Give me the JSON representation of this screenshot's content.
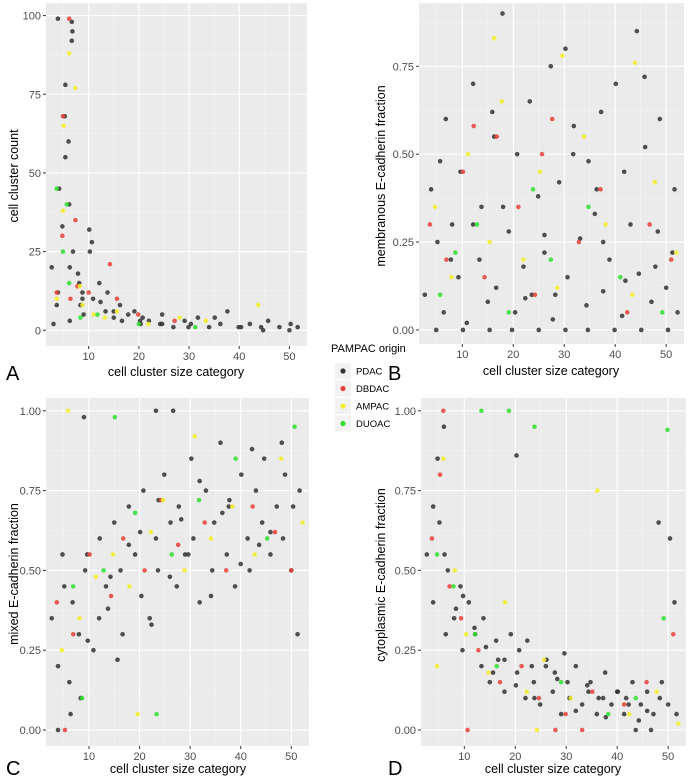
{
  "legend": {
    "title": "PAMPAC origin",
    "items": [
      {
        "label": "PDAC",
        "color": "#333333"
      },
      {
        "label": "DBDAC",
        "color": "#e8423b"
      },
      {
        "label": "AMPAC",
        "color": "#f2ef2e"
      },
      {
        "label": "DUOAC",
        "color": "#2fe02f"
      }
    ]
  },
  "style": {
    "panel_background": "#ebebeb",
    "grid_major": "#ffffff",
    "grid_minor": "#f4f4f4",
    "point_alpha": 0.85
  },
  "chart_data": [
    {
      "panel": "A",
      "type": "scatter",
      "xlabel": "cell cluster size category",
      "ylabel": "cell cluster count",
      "xlim": [
        1.5,
        53.5
      ],
      "ylim": [
        -5,
        104
      ],
      "xticks": [
        10,
        20,
        30,
        40,
        50
      ],
      "yticks": [
        0,
        25,
        50,
        75,
        100
      ],
      "ytick_labels": [
        "0",
        "25",
        "50",
        "75",
        "100"
      ],
      "series": [
        {
          "name": "PDAC",
          "x": [
            3,
            4,
            4,
            5,
            5,
            6,
            6,
            7,
            7,
            8,
            8,
            9,
            9,
            10,
            11,
            11,
            12,
            13,
            14,
            15,
            16,
            17,
            18,
            19,
            20,
            21,
            22,
            24,
            25,
            27,
            29,
            30,
            32,
            34,
            36,
            38,
            40,
            42,
            44,
            46,
            48,
            50,
            52,
            4,
            6,
            5,
            7,
            3,
            6,
            4,
            8,
            10,
            12,
            9,
            15,
            20,
            25,
            30,
            35,
            40,
            45,
            50,
            5,
            7
          ],
          "y": [
            20,
            99,
            45,
            78,
            33,
            60,
            20,
            98,
            25,
            15,
            8,
            12,
            5,
            25,
            28,
            10,
            15,
            6,
            12,
            4,
            8,
            3,
            5,
            6,
            2,
            4,
            3,
            2,
            5,
            1,
            3,
            2,
            4,
            1,
            2,
            6,
            1,
            2,
            1,
            3,
            1,
            2,
            1,
            12,
            40,
            55,
            95,
            2,
            3,
            8,
            18,
            32,
            9,
            10,
            6,
            3,
            2,
            1,
            4,
            1,
            0,
            0,
            68,
            92
          ]
        },
        {
          "name": "DBDAC",
          "x": [
            4,
            5,
            6,
            7,
            8,
            10,
            14,
            16,
            20,
            27,
            6,
            5
          ],
          "y": [
            12,
            68,
            99,
            35,
            14,
            12,
            21,
            10,
            5,
            3,
            10,
            30
          ]
        },
        {
          "name": "AMPAC",
          "x": [
            4,
            5,
            6,
            7,
            9,
            11,
            13,
            16,
            22,
            28,
            33,
            44,
            5,
            8
          ],
          "y": [
            10,
            38,
            88,
            77,
            8,
            5,
            4,
            6,
            2,
            4,
            3,
            8,
            65,
            14
          ]
        },
        {
          "name": "DUOAC",
          "x": [
            4,
            5,
            6,
            8,
            12,
            20,
            31,
            6
          ],
          "y": [
            45,
            25,
            15,
            4,
            5,
            2,
            1,
            40
          ]
        }
      ]
    },
    {
      "panel": "B",
      "type": "scatter",
      "xlabel": "cell cluster size category",
      "ylabel": "membranous E-cadherin fraction",
      "xlim": [
        1.5,
        53.5
      ],
      "ylim": [
        -0.04,
        0.93
      ],
      "xticks": [
        10,
        20,
        30,
        40,
        50
      ],
      "yticks": [
        0,
        0.25,
        0.5,
        0.75
      ],
      "ytick_labels": [
        "0.00",
        "0.25",
        "0.50",
        "0.75"
      ],
      "series": [
        {
          "name": "PDAC",
          "x": [
            3,
            4,
            5,
            6,
            7,
            8,
            9,
            10,
            11,
            12,
            13,
            14,
            15,
            16,
            17,
            18,
            19,
            20,
            21,
            22,
            23,
            24,
            25,
            26,
            27,
            28,
            29,
            30,
            31,
            32,
            33,
            34,
            35,
            36,
            37,
            38,
            39,
            40,
            41,
            42,
            43,
            44,
            45,
            46,
            47,
            48,
            49,
            50,
            51,
            52,
            5,
            10,
            15,
            20,
            25,
            30,
            35,
            40,
            45,
            50,
            8,
            18,
            28,
            38,
            48,
            12,
            22,
            32,
            42,
            52,
            6,
            16,
            26,
            36,
            46
          ],
          "y": [
            0.1,
            0.4,
            0.25,
            0.05,
            0.6,
            0.3,
            0.15,
            0.45,
            0.02,
            0.7,
            0.2,
            0.35,
            0.08,
            0.55,
            0.12,
            0.9,
            0.28,
            0.05,
            0.5,
            0.18,
            0.65,
            0.1,
            0.38,
            0.22,
            0.75,
            0.03,
            0.42,
            0.8,
            0.15,
            0.58,
            0.26,
            0.07,
            0.48,
            0.33,
            0.62,
            0.11,
            0.2,
            0.7,
            0.04,
            0.45,
            0.3,
            0.85,
            0.16,
            0.52,
            0.08,
            0.28,
            0.6,
            0.12,
            0.22,
            0.4,
            0.0,
            0.0,
            0.0,
            0.0,
            0.0,
            0.0,
            0.0,
            0.0,
            0.0,
            0.0,
            0.2,
            0.35,
            0.1,
            0.25,
            0.18,
            0.3,
            0.09,
            0.5,
            0.14,
            0.05,
            0.48,
            0.62,
            0.27,
            0.4,
            0.72
          ]
        },
        {
          "name": "DBDAC",
          "x": [
            4,
            7,
            10,
            14,
            17,
            21,
            24,
            28,
            33,
            37,
            42,
            47,
            51,
            12,
            26
          ],
          "y": [
            0.3,
            0.2,
            0.45,
            0.15,
            0.55,
            0.35,
            0.1,
            0.6,
            0.25,
            0.4,
            0.05,
            0.3,
            0.2,
            0.58,
            0.5
          ]
        },
        {
          "name": "AMPAC",
          "x": [
            5,
            8,
            11,
            15,
            18,
            22,
            25,
            29,
            34,
            38,
            43,
            48,
            52,
            16,
            30,
            44
          ],
          "y": [
            0.35,
            0.15,
            0.5,
            0.25,
            0.65,
            0.2,
            0.45,
            0.12,
            0.55,
            0.3,
            0.1,
            0.42,
            0.22,
            0.83,
            0.78,
            0.76
          ]
        },
        {
          "name": "DUOAC",
          "x": [
            6,
            13,
            19,
            27,
            35,
            41,
            49,
            9,
            24
          ],
          "y": [
            0.1,
            0.3,
            0.05,
            0.2,
            0.35,
            0.15,
            0.05,
            0.22,
            0.4
          ]
        }
      ]
    },
    {
      "panel": "C",
      "type": "scatter",
      "xlabel": "cell cluster size category",
      "ylabel": "mixed E-cadherin fraction",
      "xlim": [
        1.5,
        53.5
      ],
      "ylim": [
        -0.05,
        1.04
      ],
      "xticks": [
        10,
        20,
        30,
        40,
        50
      ],
      "yticks": [
        0,
        0.25,
        0.5,
        0.75,
        1.0
      ],
      "ytick_labels": [
        "0.00",
        "0.25",
        "0.50",
        "0.75",
        "1.00"
      ],
      "series": [
        {
          "name": "PDAC",
          "x": [
            3,
            4,
            5,
            6,
            7,
            8,
            9,
            10,
            11,
            12,
            13,
            14,
            15,
            16,
            17,
            18,
            19,
            20,
            21,
            22,
            23,
            24,
            25,
            26,
            27,
            28,
            29,
            30,
            31,
            32,
            33,
            34,
            35,
            36,
            37,
            38,
            39,
            40,
            41,
            42,
            43,
            44,
            45,
            46,
            47,
            48,
            49,
            50,
            51,
            52,
            4,
            6,
            8,
            10,
            12,
            14,
            16,
            18,
            20,
            22,
            24,
            26,
            28,
            30,
            32,
            34,
            36,
            38,
            40,
            42,
            44,
            46,
            48,
            50,
            5,
            9,
            23,
            27
          ],
          "y": [
            0.35,
            0.2,
            0.45,
            0.05,
            0.4,
            0.3,
            0.5,
            0.55,
            0.25,
            0.6,
            0.45,
            0.38,
            0.65,
            0.5,
            0.3,
            0.7,
            0.55,
            0.42,
            0.75,
            0.35,
            0.6,
            0.5,
            0.8,
            0.65,
            0.45,
            0.7,
            0.55,
            0.85,
            0.6,
            0.4,
            0.75,
            0.5,
            0.65,
            0.9,
            0.55,
            0.7,
            0.45,
            0.8,
            0.6,
            0.5,
            0.75,
            0.65,
            0.85,
            0.55,
            0.7,
            0.6,
            0.8,
            0.5,
            0.3,
            0.75,
            0.0,
            0.15,
            0.1,
            0.28,
            0.35,
            0.48,
            0.22,
            0.58,
            0.62,
            0.33,
            0.72,
            0.48,
            0.66,
            0.55,
            0.78,
            0.42,
            0.68,
            0.72,
            0.52,
            0.88,
            0.58,
            0.62,
            0.9,
            0.7,
            0.55,
            0.98,
            1.0,
            1.0
          ]
        },
        {
          "name": "DBDAC",
          "x": [
            4,
            7,
            10,
            14,
            17,
            21,
            24,
            28,
            33,
            37,
            42,
            47,
            50,
            5
          ],
          "y": [
            0.4,
            0.3,
            0.55,
            0.42,
            0.6,
            0.5,
            0.72,
            0.58,
            0.65,
            0.5,
            0.7,
            0.62,
            0.5,
            0.0
          ]
        },
        {
          "name": "AMPAC",
          "x": [
            5,
            6,
            8,
            11,
            15,
            18,
            22,
            25,
            29,
            34,
            38,
            43,
            48,
            52,
            20,
            31
          ],
          "y": [
            0.25,
            1.0,
            0.35,
            0.48,
            0.55,
            0.45,
            0.62,
            0.72,
            0.5,
            0.6,
            0.7,
            0.55,
            0.85,
            0.65,
            0.05,
            0.92
          ]
        },
        {
          "name": "DUOAC",
          "x": [
            9,
            13,
            19,
            26,
            32,
            39,
            45,
            51,
            7,
            15,
            23
          ],
          "y": [
            0.1,
            0.5,
            0.68,
            0.55,
            0.72,
            0.85,
            0.6,
            0.95,
            0.45,
            0.98,
            0.05
          ]
        }
      ]
    },
    {
      "panel": "D",
      "type": "scatter",
      "xlabel": "cell cluster size category",
      "ylabel": "cytoplasmic E-cadherin fraction",
      "xlim": [
        1.5,
        53.5
      ],
      "ylim": [
        -0.05,
        1.04
      ],
      "xticks": [
        10,
        20,
        30,
        40,
        50
      ],
      "yticks": [
        0,
        0.25,
        0.5,
        0.75,
        1.0
      ],
      "ytick_labels": [
        "0.00",
        "0.25",
        "0.50",
        "0.75",
        "1.00"
      ],
      "series": [
        {
          "name": "PDAC",
          "x": [
            3,
            4,
            5,
            6,
            7,
            8,
            9,
            10,
            11,
            12,
            13,
            14,
            15,
            16,
            17,
            18,
            19,
            20,
            21,
            22,
            23,
            24,
            25,
            26,
            27,
            28,
            29,
            30,
            31,
            32,
            33,
            34,
            35,
            36,
            37,
            38,
            39,
            40,
            41,
            42,
            43,
            44,
            45,
            46,
            47,
            48,
            49,
            50,
            51,
            52,
            4,
            6,
            8,
            10,
            12,
            14,
            16,
            18,
            20,
            22,
            24,
            26,
            28,
            30,
            32,
            34,
            36,
            38,
            40,
            42,
            44,
            46,
            48,
            50,
            5,
            6,
            20,
            47
          ],
          "y": [
            0.55,
            0.4,
            0.65,
            0.3,
            0.5,
            0.35,
            0.45,
            0.25,
            0.4,
            0.3,
            0.2,
            0.35,
            0.15,
            0.28,
            0.22,
            0.12,
            0.3,
            0.18,
            0.25,
            0.1,
            0.2,
            0.15,
            0.08,
            0.22,
            0.12,
            0.18,
            0.05,
            0.15,
            0.1,
            0.2,
            0.08,
            0.12,
            0.15,
            0.05,
            0.1,
            0.18,
            0.08,
            0.12,
            0.05,
            0.1,
            0.15,
            0.03,
            0.08,
            0.12,
            0.05,
            0.1,
            0.15,
            0.08,
            0.4,
            0.05,
            0.7,
            0.55,
            0.38,
            0.42,
            0.32,
            0.26,
            0.18,
            0.22,
            0.14,
            0.28,
            0.1,
            0.2,
            0.16,
            0.24,
            0.06,
            0.14,
            0.1,
            0.04,
            0.12,
            0.08,
            0.0,
            0.06,
            0.65,
            0.6,
            0.85,
            0.95,
            0.86,
            0.0
          ]
        },
        {
          "name": "DBDAC",
          "x": [
            4,
            6,
            7,
            9,
            13,
            17,
            21,
            25,
            30,
            35,
            41,
            46,
            51,
            5,
            11,
            28,
            33
          ],
          "y": [
            0.6,
            1.0,
            0.45,
            0.35,
            0.25,
            0.15,
            0.2,
            0.1,
            0.05,
            0.12,
            0.08,
            0.15,
            0.3,
            0.8,
            0.0,
            0.0,
            0.0
          ]
        },
        {
          "name": "AMPAC",
          "x": [
            5,
            6,
            8,
            10,
            15,
            18,
            22,
            26,
            31,
            36,
            42,
            48,
            52,
            24
          ],
          "y": [
            0.2,
            0.85,
            0.5,
            0.3,
            0.18,
            0.4,
            0.12,
            0.22,
            0.1,
            0.75,
            0.05,
            0.12,
            0.02,
            0.0
          ]
        },
        {
          "name": "DUOAC",
          "x": [
            5,
            8,
            12,
            16,
            24,
            29,
            38,
            44,
            50,
            49,
            13,
            19
          ],
          "y": [
            0.55,
            0.45,
            0.3,
            0.2,
            0.95,
            0.15,
            0.05,
            0.1,
            0.94,
            0.35,
            1.0,
            1.0
          ]
        }
      ]
    }
  ]
}
